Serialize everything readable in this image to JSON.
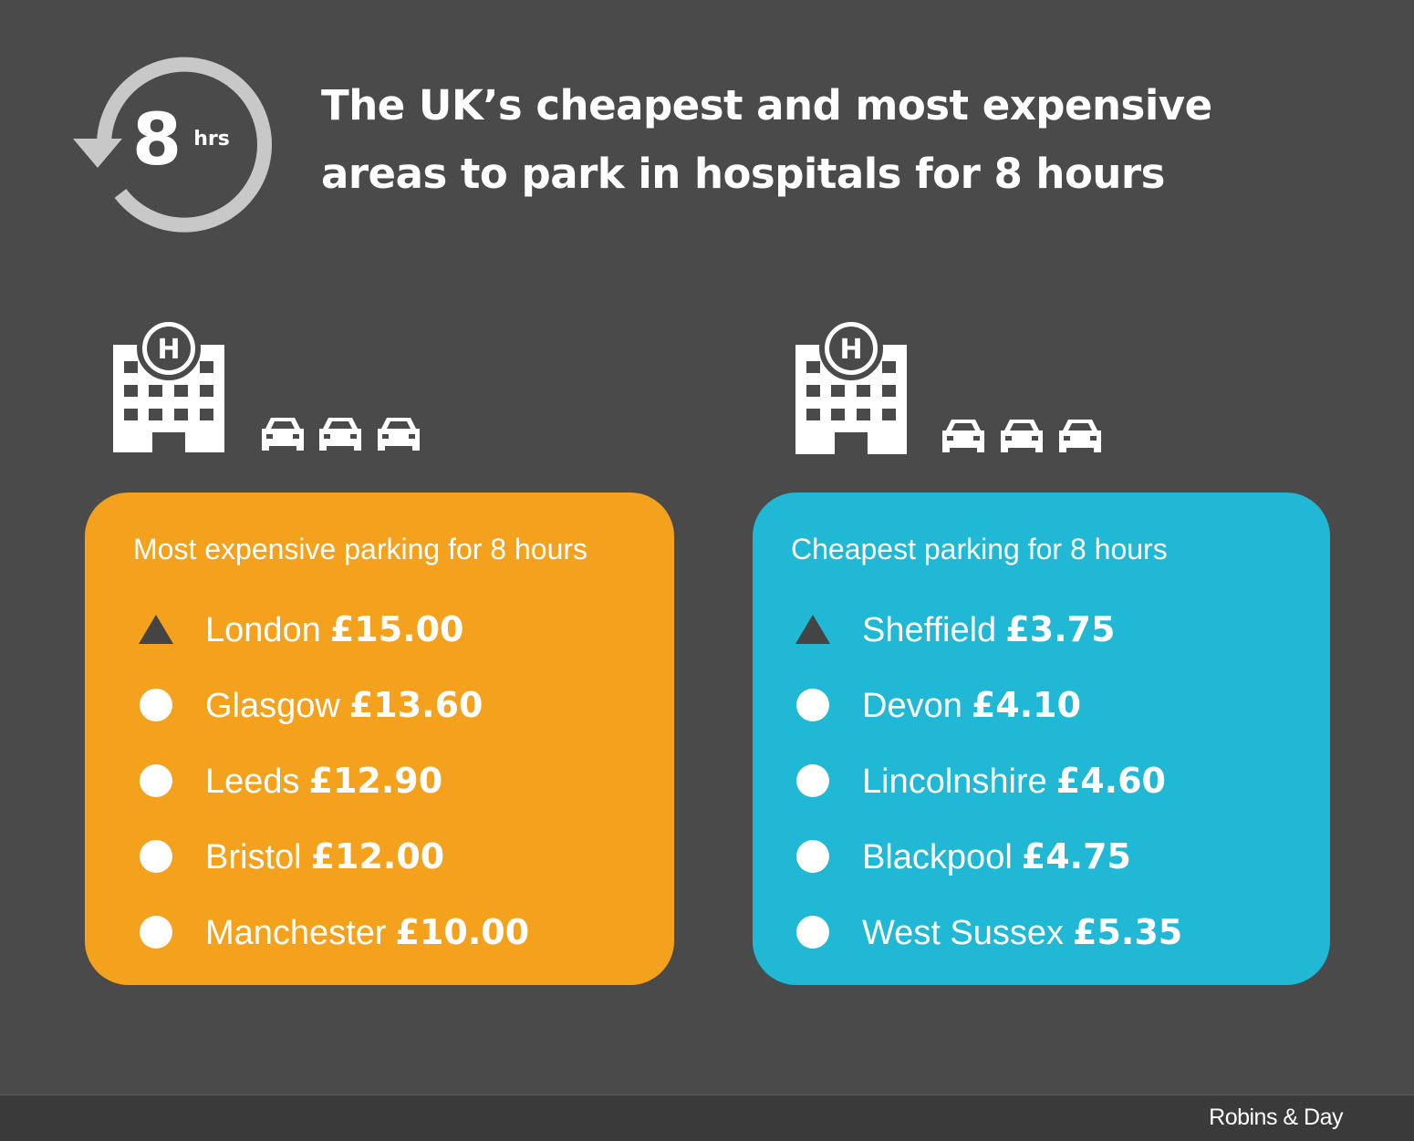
{
  "header": {
    "clock_number": "8",
    "clock_unit": "hrs",
    "title_line1": "The UK’s cheapest and most expensive",
    "title_line2": "areas to park in hospitals for 8 hours"
  },
  "colors": {
    "background": "#4a4a4a",
    "expensive_card": "#f4a11d",
    "cheapest_card": "#20b8d4",
    "footer": "#3a3a3a",
    "top_marker": "#444444"
  },
  "icons": [
    "hospital-icon",
    "car-icon",
    "clock-arrow-icon",
    "triangle-icon",
    "dot-icon"
  ],
  "expensive": {
    "heading": "Most expensive parking for 8 hours",
    "items": [
      {
        "place": "London",
        "price": "£15.00",
        "marker": "triangle"
      },
      {
        "place": "Glasgow",
        "price": "£13.60",
        "marker": "dot"
      },
      {
        "place": "Leeds",
        "price": "£12.90",
        "marker": "dot"
      },
      {
        "place": "Bristol",
        "price": "£12.00",
        "marker": "dot"
      },
      {
        "place": "Manchester",
        "price": "£10.00",
        "marker": "dot"
      }
    ]
  },
  "cheapest": {
    "heading": "Cheapest parking for 8 hours",
    "items": [
      {
        "place": "Sheffield",
        "price": "£3.75",
        "marker": "triangle"
      },
      {
        "place": "Devon",
        "price": "£4.10",
        "marker": "dot"
      },
      {
        "place": "Lincolnshire",
        "price": "£4.60",
        "marker": "dot"
      },
      {
        "place": "Blackpool",
        "price": "£4.75",
        "marker": "dot"
      },
      {
        "place": "West Sussex",
        "price": "£5.35",
        "marker": "dot"
      }
    ]
  },
  "footer": {
    "brand": "Robins & Day"
  }
}
